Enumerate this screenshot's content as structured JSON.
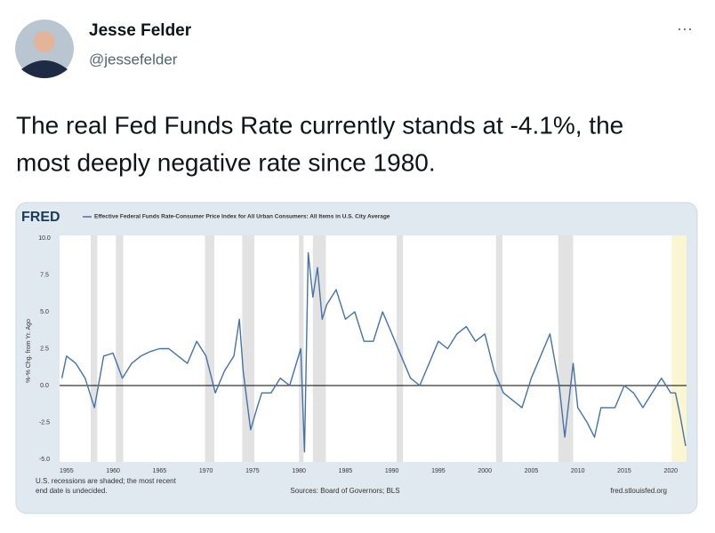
{
  "header": {
    "name": "Jesse Felder",
    "handle": "@jessefelder",
    "menu": "···"
  },
  "tweet": {
    "lines": [
      "The real Fed Funds Rate currently stands at -4.1%, the",
      "most deeply negative rate since 1980."
    ]
  },
  "card": {
    "logo": "FRED",
    "note_lines": [
      "U.S. recessions are shaded; the most recent",
      "end date is undecided."
    ],
    "sources": "Sources: Board of Governors; BLS",
    "url": "fred.stlouisfed.org"
  },
  "chart_data": {
    "type": "line",
    "ylabel": "%-% Chg. from Yr. Ago",
    "xlim": [
      1954.25,
      2021.7
    ],
    "ylim": [
      -5,
      10
    ],
    "xticks": [
      1955,
      1960,
      1965,
      1970,
      1975,
      1980,
      1985,
      1990,
      1995,
      2000,
      2005,
      2010,
      2015,
      2020
    ],
    "yticks": [
      {
        "value": 10,
        "label": "10.0"
      },
      7.5,
      {
        "value": 5,
        "label": "5.0"
      },
      2.5,
      {
        "value": 0,
        "label": "0.0"
      },
      -2.5,
      {
        "value": -5,
        "label": "-5.0"
      }
    ],
    "recessions": [
      [
        1957.6,
        1958.3
      ],
      [
        1960.3,
        1961.1
      ],
      [
        1969.9,
        1970.9
      ],
      [
        1973.9,
        1975.2
      ],
      [
        1980.0,
        1980.5
      ],
      [
        1981.5,
        1982.9
      ],
      [
        1990.5,
        1991.2
      ],
      [
        2001.2,
        2001.9
      ],
      [
        2007.9,
        2009.5
      ],
      [
        2020.1,
        2021.7
      ]
    ],
    "series": [
      {
        "name": "Effective Federal Funds Rate-Consumer Price Index for All Urban Consumers: All Items in U.S. City Average",
        "color": "#4572a7",
        "x": [
          1954.5,
          1955,
          1956,
          1957,
          1958,
          1959,
          1960,
          1961,
          1962,
          1963,
          1964,
          1965,
          1966,
          1967,
          1968,
          1969,
          1970,
          1971,
          1972,
          1973,
          1973.6,
          1974,
          1974.8,
          1975.5,
          1976,
          1977,
          1978,
          1979,
          1980.2,
          1980.6,
          1981,
          1981.5,
          1982,
          1982.5,
          1983,
          1984,
          1985,
          1986,
          1987,
          1988,
          1989,
          1990,
          1991,
          1992,
          1993,
          1994,
          1995,
          1996,
          1997,
          1998,
          1999,
          2000,
          2001,
          2002,
          2003,
          2004,
          2005,
          2006,
          2007,
          2008,
          2008.6,
          2009.5,
          2010,
          2011,
          2011.8,
          2012.5,
          2013,
          2014,
          2015,
          2016,
          2017,
          2018,
          2019,
          2020,
          2020.5,
          2021,
          2021.6
        ],
        "values": [
          0.5,
          2.0,
          1.5,
          0.5,
          -1.5,
          2.0,
          2.2,
          0.5,
          1.5,
          2.0,
          2.3,
          2.5,
          2.5,
          2.0,
          1.5,
          3.0,
          2.0,
          -0.5,
          1.0,
          2.0,
          4.5,
          1.0,
          -3.0,
          -1.5,
          -0.5,
          -0.5,
          0.5,
          0.0,
          2.5,
          -4.5,
          9.0,
          6.0,
          8.0,
          4.5,
          5.5,
          6.5,
          4.5,
          5.0,
          3.0,
          3.0,
          5.0,
          3.5,
          2.0,
          0.5,
          0.0,
          1.5,
          3.0,
          2.5,
          3.5,
          4.0,
          3.0,
          3.5,
          1.0,
          -0.5,
          -1.0,
          -1.5,
          0.5,
          2.0,
          3.5,
          0.0,
          -3.5,
          1.5,
          -1.5,
          -2.5,
          -3.5,
          -1.5,
          -1.5,
          -1.5,
          0.0,
          -0.5,
          -1.5,
          -0.5,
          0.5,
          -0.5,
          -0.5,
          -2.0,
          -4.1
        ]
      }
    ]
  }
}
